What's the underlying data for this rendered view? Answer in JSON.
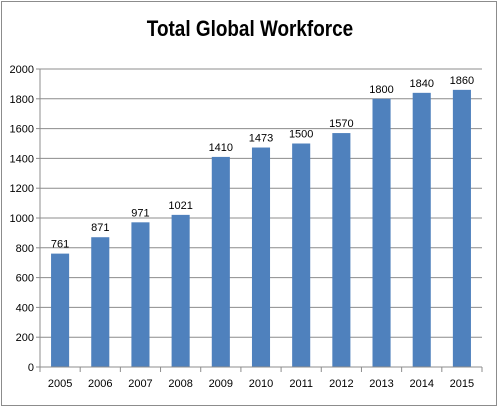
{
  "chart_data": {
    "type": "bar",
    "title": "Total Global Workforce",
    "xlabel": "",
    "ylabel": "",
    "categories": [
      "2005",
      "2006",
      "2007",
      "2008",
      "2009",
      "2010",
      "2011",
      "2012",
      "2013",
      "2014",
      "2015"
    ],
    "values": [
      761,
      871,
      971,
      1021,
      1410,
      1473,
      1500,
      1570,
      1800,
      1840,
      1860
    ],
    "data_labels": [
      "761",
      "871",
      "971",
      "1021",
      "1410",
      "1473",
      "1500",
      "1570",
      "1800",
      "1840",
      "1860"
    ],
    "ylim": [
      0,
      2000
    ],
    "yticks": [
      0,
      200,
      400,
      600,
      800,
      1000,
      1200,
      1400,
      1600,
      1800,
      2000
    ],
    "ytick_labels": [
      "0",
      "200",
      "400",
      "600",
      "800",
      "1000",
      "1200",
      "1400",
      "1600",
      "1800",
      "2000"
    ],
    "grid": true,
    "legend": "none",
    "colors": {
      "bar": "#4f81bd",
      "grid": "#8c8c8c",
      "axis": "#8c8c8c"
    }
  }
}
